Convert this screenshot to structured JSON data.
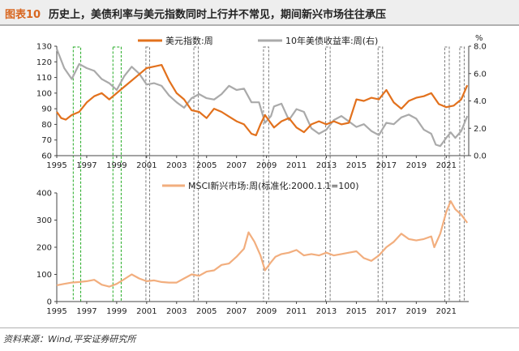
{
  "figure": {
    "number": "图表10",
    "title": "历史上，美债利率与美元指数同时上行并不常见，期间新兴市场往往承压",
    "source": "资料来源：Wind,平安证券研究所"
  },
  "colors": {
    "usd": "#e2711d",
    "treasury": "#aaaaaa",
    "msci": "#f2ae7e",
    "box_green": "#22aa22",
    "box_gray": "#7a7a7a",
    "title_num": "#d8661f"
  },
  "chart_data": [
    {
      "type": "line",
      "title": "",
      "xlabel": "",
      "x_ticks": [
        "1995",
        "1997",
        "1999",
        "2001",
        "2003",
        "2005",
        "2007",
        "2009",
        "2011",
        "2013",
        "2015",
        "2017",
        "2019",
        "2021"
      ],
      "xlim": [
        1995,
        2022.5
      ],
      "ylim_left": [
        60,
        130
      ],
      "y_ticks_left": [
        "60",
        "70",
        "80",
        "90",
        "100",
        "110",
        "120",
        "130"
      ],
      "ylim_right": [
        0,
        8
      ],
      "y_ticks_right": [
        "0.0",
        "2.0",
        "4.0",
        "6.0",
        "8.0"
      ],
      "right_unit": "%",
      "legend_position": "top",
      "series": [
        {
          "name": "美元指数:周",
          "axis": "left",
          "x": [
            1995,
            1995.3,
            1995.6,
            1996,
            1996.5,
            1997,
            1997.5,
            1998,
            1998.5,
            1999,
            1999.5,
            2000,
            2000.5,
            2001,
            2001.5,
            2002,
            2002.5,
            2003,
            2003.5,
            2004,
            2004.5,
            2005,
            2005.5,
            2006,
            2006.5,
            2007,
            2007.5,
            2008,
            2008.3,
            2008.6,
            2008.9,
            2009.2,
            2009.5,
            2010,
            2010.5,
            2011,
            2011.5,
            2012,
            2012.5,
            2013,
            2013.5,
            2014,
            2014.5,
            2015,
            2015.5,
            2016,
            2016.5,
            2017,
            2017.5,
            2018,
            2018.5,
            2019,
            2019.5,
            2020,
            2020.5,
            2021,
            2021.5,
            2022,
            2022.4
          ],
          "values": [
            88,
            84,
            83,
            86,
            88,
            94,
            98,
            100,
            96,
            100,
            104,
            108,
            112,
            116,
            117,
            118,
            108,
            100,
            96,
            89,
            88,
            84,
            90,
            88,
            85,
            82,
            80,
            74,
            73,
            80,
            86,
            82,
            78,
            82,
            84,
            78,
            75,
            80,
            82,
            80,
            82,
            80,
            81,
            96,
            95,
            97,
            96,
            102,
            94,
            90,
            95,
            97,
            98,
            100,
            93,
            91,
            92,
            96,
            105
          ]
        },
        {
          "name": "10年美债收益率:周(右)",
          "axis": "right",
          "x": [
            1995,
            1995.5,
            1996,
            1996.5,
            1997,
            1997.5,
            1998,
            1998.5,
            1999,
            1999.5,
            2000,
            2000.5,
            2001,
            2001.5,
            2002,
            2002.5,
            2003,
            2003.5,
            2004,
            2004.5,
            2005,
            2005.5,
            2006,
            2006.5,
            2007,
            2007.5,
            2008,
            2008.5,
            2008.9,
            2009.3,
            2009.5,
            2010,
            2010.5,
            2011,
            2011.5,
            2012,
            2012.5,
            2013,
            2013.5,
            2014,
            2014.5,
            2015,
            2015.5,
            2016,
            2016.5,
            2017,
            2017.5,
            2018,
            2018.5,
            2019,
            2019.5,
            2020,
            2020.3,
            2020.6,
            2021,
            2021.3,
            2021.6,
            2022,
            2022.4
          ],
          "values": [
            7.8,
            6.4,
            5.6,
            6.7,
            6.4,
            6.2,
            5.6,
            5.3,
            4.8,
            5.8,
            6.5,
            6.0,
            5.2,
            5.3,
            5.1,
            4.4,
            3.9,
            3.5,
            4.2,
            4.5,
            4.2,
            4.1,
            4.5,
            5.1,
            4.8,
            4.9,
            3.9,
            3.9,
            2.4,
            2.9,
            3.6,
            3.8,
            2.6,
            3.4,
            3.2,
            2.0,
            1.6,
            1.9,
            2.6,
            2.9,
            2.5,
            2.1,
            2.3,
            1.8,
            1.5,
            2.4,
            2.3,
            2.8,
            3.0,
            2.7,
            1.9,
            1.6,
            0.8,
            0.7,
            1.3,
            1.7,
            1.3,
            1.8,
            2.9
          ]
        }
      ]
    },
    {
      "type": "line",
      "title": "",
      "xlabel": "",
      "x_ticks": [
        "1995",
        "1997",
        "1999",
        "2001",
        "2003",
        "2005",
        "2007",
        "2009",
        "2011",
        "2013",
        "2015",
        "2017",
        "2019",
        "2021"
      ],
      "xlim": [
        1995,
        2022.5
      ],
      "ylim": [
        0,
        400
      ],
      "y_ticks": [
        "0",
        "100",
        "200",
        "300",
        "400"
      ],
      "legend_position": "top",
      "series": [
        {
          "name": "MSCI新兴市场:周(标准化:2000.1.1=100)",
          "x": [
            1995,
            1995.5,
            1996,
            1996.5,
            1997,
            1997.5,
            1998,
            1998.5,
            1999,
            1999.5,
            2000,
            2000.5,
            2001,
            2001.5,
            2002,
            2002.5,
            2003,
            2003.5,
            2004,
            2004.5,
            2005,
            2005.5,
            2006,
            2006.5,
            2007,
            2007.5,
            2007.8,
            2008.2,
            2008.6,
            2008.9,
            2009.3,
            2009.6,
            2010,
            2010.5,
            2011,
            2011.5,
            2012,
            2012.5,
            2013,
            2013.5,
            2014,
            2014.5,
            2015,
            2015.5,
            2016,
            2016.5,
            2017,
            2017.5,
            2018,
            2018.5,
            2019,
            2019.5,
            2020,
            2020.2,
            2020.6,
            2021,
            2021.3,
            2021.6,
            2022,
            2022.4
          ],
          "values": [
            60,
            65,
            70,
            72,
            75,
            80,
            62,
            55,
            65,
            82,
            100,
            85,
            75,
            78,
            72,
            70,
            70,
            85,
            100,
            95,
            110,
            115,
            135,
            140,
            165,
            195,
            255,
            220,
            170,
            115,
            145,
            165,
            175,
            180,
            190,
            170,
            175,
            170,
            180,
            170,
            175,
            180,
            185,
            160,
            150,
            170,
            200,
            220,
            250,
            230,
            225,
            230,
            240,
            200,
            250,
            330,
            370,
            340,
            320,
            290
          ]
        }
      ]
    }
  ],
  "highlight_periods": [
    {
      "color": "green",
      "start": 1996.1,
      "end": 1996.6
    },
    {
      "color": "green",
      "start": 1998.75,
      "end": 1999.3
    },
    {
      "color": "gray",
      "start": 2000.95,
      "end": 2001.2
    },
    {
      "color": "gray",
      "start": 2004.15,
      "end": 2004.45
    },
    {
      "color": "gray",
      "start": 2008.8,
      "end": 2009.15
    },
    {
      "color": "gray",
      "start": 2012.95,
      "end": 2013.25
    },
    {
      "color": "gray",
      "start": 2016.45,
      "end": 2016.75
    },
    {
      "color": "gray",
      "start": 2020.9,
      "end": 2021.2
    },
    {
      "color": "gray",
      "start": 2021.9,
      "end": 2022.2
    }
  ]
}
